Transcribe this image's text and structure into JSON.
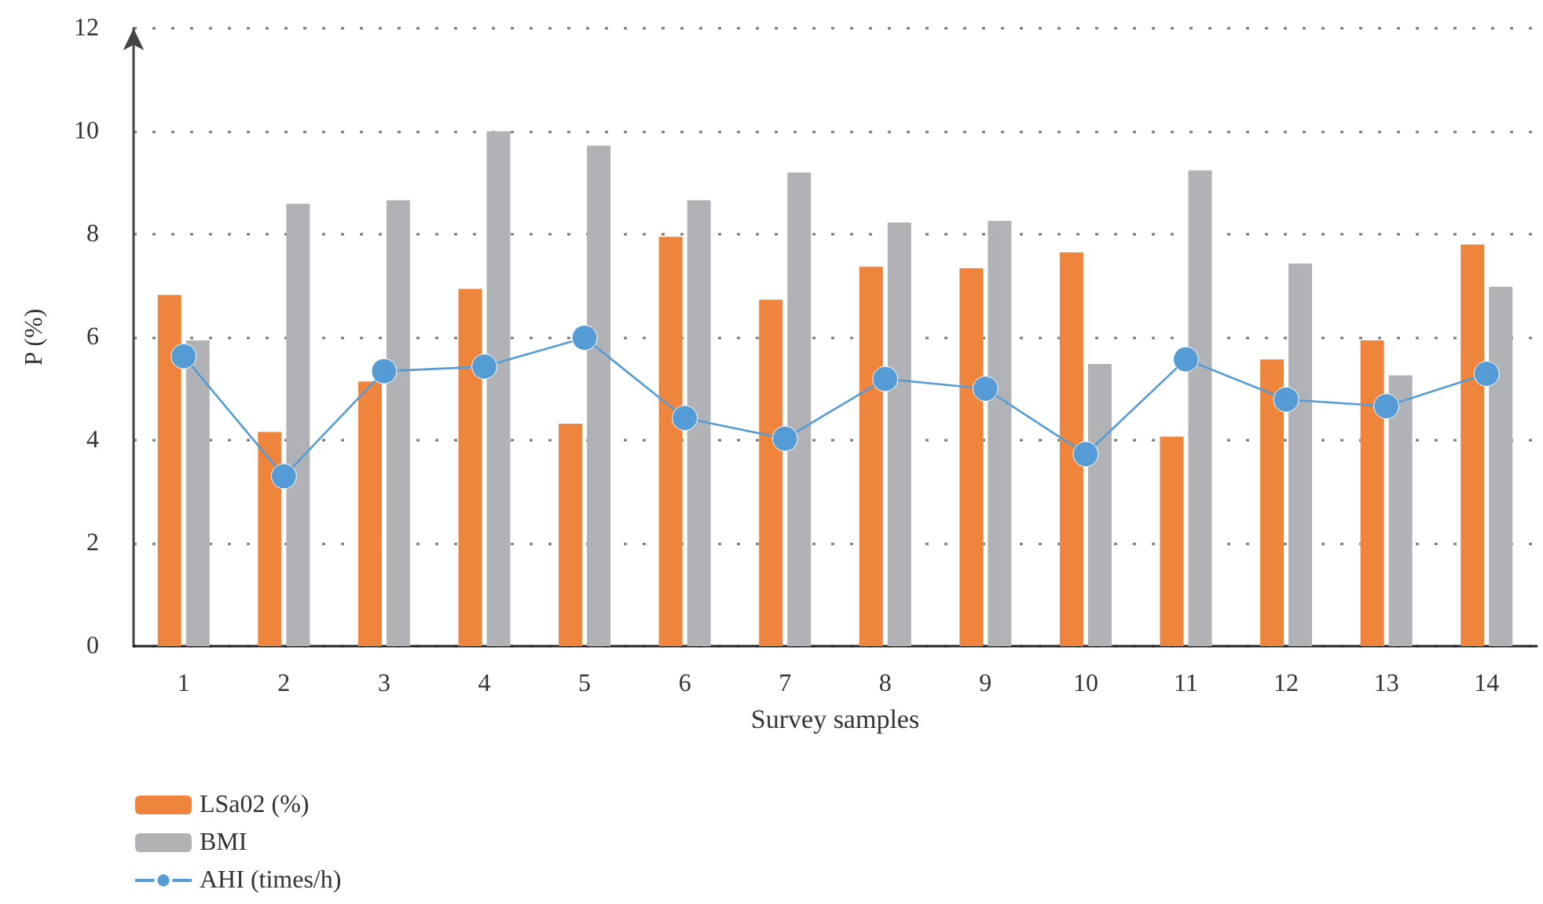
{
  "chart_data": {
    "type": "bar",
    "xlabel": "Survey samples",
    "ylabel": "P (%)",
    "categories": [
      "1",
      "2",
      "3",
      "4",
      "5",
      "6",
      "7",
      "8",
      "9",
      "10",
      "11",
      "12",
      "13",
      "14"
    ],
    "series": [
      {
        "name": "LSa02 (%)",
        "color": "#ef843c",
        "values": [
          6.82,
          4.16,
          5.14,
          6.94,
          4.32,
          7.95,
          6.73,
          7.37,
          7.34,
          7.65,
          4.07,
          5.57,
          5.94,
          7.8
        ]
      },
      {
        "name": "BMI",
        "color": "#b1b2b5",
        "values": [
          5.94,
          8.59,
          8.66,
          10.0,
          9.72,
          8.66,
          9.2,
          8.23,
          8.26,
          5.48,
          9.24,
          7.43,
          5.26,
          6.98
        ]
      },
      {
        "name": "AHI (times/h)",
        "type": "line",
        "color": "#559bd5",
        "marker": "circle",
        "values": [
          5.63,
          3.3,
          5.34,
          5.43,
          5.99,
          4.43,
          4.03,
          5.19,
          5.0,
          3.73,
          5.57,
          4.79,
          4.66,
          5.29
        ]
      }
    ],
    "ylim": [
      0,
      12
    ],
    "yticks": [
      0,
      2,
      4,
      6,
      8,
      10,
      12
    ],
    "grid": "y",
    "legend": "bottom left"
  }
}
